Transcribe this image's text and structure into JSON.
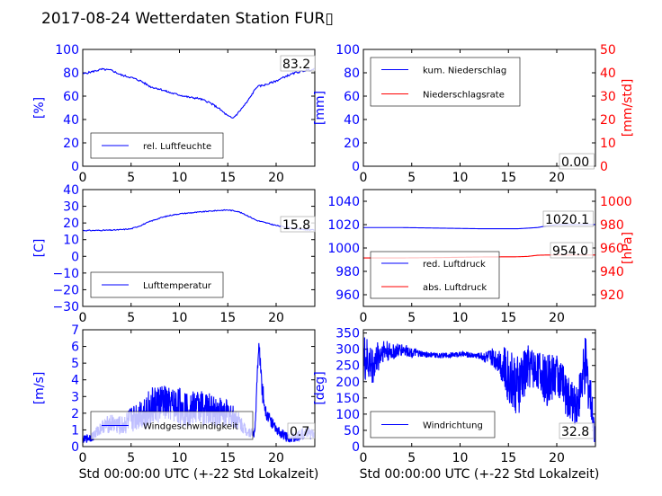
{
  "title": "2017-08-24 Wetterdaten Station FUR▯",
  "colors": {
    "primary": "#0000ff",
    "secondary": "#ff0000",
    "axis": "#000000"
  },
  "xlabel": "Std 00:00:00 UTC (+-22 Std Lokalzeit)",
  "chart_data": [
    {
      "id": "humidity",
      "type": "line",
      "xlabel": "",
      "ylabel": "[%]",
      "xlim": [
        0,
        24
      ],
      "ylim": [
        0,
        100
      ],
      "xticks": [
        0,
        5,
        10,
        15,
        20
      ],
      "yticks": [
        0,
        20,
        40,
        60,
        80,
        100
      ],
      "series": [
        {
          "name": "rel. Luftfeuchte",
          "color": "#0000ff",
          "x": [
            0,
            1,
            2,
            3,
            4,
            5,
            6,
            7,
            8,
            9,
            10,
            11,
            12,
            13,
            14,
            15,
            15.5,
            16,
            17,
            18,
            19,
            20,
            21,
            22,
            23,
            24
          ],
          "y": [
            79,
            81,
            83,
            82,
            78,
            76,
            73,
            68,
            66,
            63,
            61,
            59,
            58,
            55,
            50,
            43,
            41,
            45,
            55,
            68,
            70,
            73,
            77,
            80,
            82,
            83
          ]
        }
      ],
      "annotation": "83.2"
    },
    {
      "id": "precipitation",
      "type": "line",
      "xlabel": "",
      "ylabel": "[mm]",
      "ylabel2": "[mm/std]",
      "xlim": [
        0,
        24
      ],
      "ylim": [
        0,
        100
      ],
      "y2lim": [
        0,
        50
      ],
      "xticks": [
        0,
        5,
        10,
        15,
        20
      ],
      "yticks": [
        0,
        20,
        40,
        60,
        80,
        100
      ],
      "y2ticks": [
        0,
        10,
        20,
        30,
        40,
        50
      ],
      "series": [
        {
          "name": "kum. Niederschlag",
          "color": "#0000ff",
          "x": [
            0,
            24
          ],
          "y": [
            0,
            0
          ]
        },
        {
          "name": "Niederschlagsrate",
          "color": "#ff0000",
          "axis": "right",
          "x": [
            0,
            24
          ],
          "y": [
            0,
            0
          ]
        }
      ],
      "annotation": "0.00"
    },
    {
      "id": "temperature",
      "type": "line",
      "xlabel": "",
      "ylabel": "[C]",
      "xlim": [
        0,
        24
      ],
      "ylim": [
        -30,
        40
      ],
      "xticks": [
        0,
        5,
        10,
        15,
        20
      ],
      "yticks": [
        -30,
        -20,
        -10,
        0,
        10,
        20,
        30,
        40
      ],
      "series": [
        {
          "name": "Lufttemperatur",
          "color": "#0000ff",
          "x": [
            0,
            1,
            2,
            3,
            4,
            5,
            6,
            7,
            8,
            9,
            10,
            11,
            12,
            13,
            14,
            15,
            16,
            17,
            18,
            19,
            20,
            21,
            22,
            23,
            24
          ],
          "y": [
            15.5,
            15.5,
            15.6,
            15.7,
            16,
            16.5,
            18.5,
            21,
            23,
            24.5,
            25.5,
            26,
            26.5,
            27,
            27.5,
            27.8,
            27,
            24.5,
            21.5,
            20,
            18.5,
            17.5,
            16.5,
            16,
            15.8
          ]
        }
      ],
      "annotation": "15.8"
    },
    {
      "id": "pressure",
      "type": "line",
      "xlabel": "",
      "ylabel": "",
      "ylabel2": "[hPa]",
      "xlim": [
        0,
        24
      ],
      "ylim": [
        950,
        1050
      ],
      "y2lim": [
        910,
        1010
      ],
      "xticks": [
        0,
        5,
        10,
        15,
        20
      ],
      "yticks": [
        960,
        980,
        1000,
        1020,
        1040
      ],
      "y2ticks": [
        920,
        940,
        960,
        980,
        1000
      ],
      "series": [
        {
          "name": "red. Luftdruck",
          "color": "#0000ff",
          "x": [
            0,
            4,
            8,
            12,
            16,
            18,
            19,
            20,
            22,
            24
          ],
          "y": [
            1017.5,
            1017.5,
            1017,
            1016.5,
            1016.5,
            1017.5,
            1019,
            1020,
            1020.1,
            1020.1
          ]
        },
        {
          "name": "abs. Luftdruck",
          "color": "#ff0000",
          "axis": "right",
          "x": [
            0,
            4,
            8,
            12,
            16,
            17,
            18,
            19,
            20,
            22,
            24
          ],
          "y": [
            951.5,
            951.5,
            951.8,
            952.3,
            952.5,
            952.8,
            953.8,
            954.0,
            954.0,
            954.0,
            954.0
          ]
        }
      ],
      "annotations": [
        "1020.1",
        "954.0"
      ]
    },
    {
      "id": "wind_speed",
      "type": "line",
      "xlabel": "Std 00:00:00 UTC (+-22 Std Lokalzeit)",
      "ylabel": "[m/s]",
      "xlim": [
        0,
        24
      ],
      "ylim": [
        0,
        7
      ],
      "xticks": [
        0,
        5,
        10,
        15,
        20
      ],
      "yticks": [
        0,
        1,
        2,
        3,
        4,
        5,
        6,
        7
      ],
      "series": [
        {
          "name": "Windgeschwindigkeit",
          "color": "#0000ff",
          "x": [
            0,
            1,
            2,
            3,
            4,
            5,
            6,
            7,
            8,
            9,
            10,
            11,
            12,
            13,
            14,
            15,
            16,
            17,
            17.8,
            18.2,
            18.6,
            19,
            20,
            21,
            22,
            23,
            24
          ],
          "y": [
            0.4,
            0.6,
            1.2,
            1.4,
            1.2,
            1.6,
            2.0,
            2.3,
            2.6,
            2.5,
            2.4,
            2.2,
            2.4,
            2.2,
            2.1,
            2.0,
            1.6,
            0.9,
            0.8,
            6.2,
            3.2,
            2.0,
            1.0,
            0.6,
            0.5,
            0.9,
            0.7
          ],
          "noise": [
            0.2,
            0.3,
            0.4,
            0.6,
            0.6,
            0.8,
            1.0,
            1.2,
            1.2,
            1.0,
            1.2,
            1.0,
            1.1,
            1.0,
            1.0,
            0.8,
            0.6,
            0.3,
            0.3,
            0.4,
            0.7,
            0.4,
            0.3,
            0.3,
            0.3,
            0.4,
            0.3
          ]
        }
      ],
      "annotation": "0.7"
    },
    {
      "id": "wind_direction",
      "type": "line",
      "xlabel": "Std 00:00:00 UTC (+-22 Std Lokalzeit)",
      "ylabel": "[deg]",
      "xlim": [
        0,
        24
      ],
      "ylim": [
        0,
        360
      ],
      "xticks": [
        0,
        5,
        10,
        15,
        20
      ],
      "yticks": [
        0,
        50,
        100,
        150,
        200,
        250,
        300,
        350
      ],
      "series": [
        {
          "name": "Windrichtung",
          "color": "#0000ff",
          "x": [
            0,
            1,
            2,
            3,
            4,
            5,
            6,
            8,
            10,
            12,
            14,
            15,
            16,
            17,
            18,
            19,
            20,
            21,
            22,
            23,
            24
          ],
          "y": [
            270,
            250,
            300,
            290,
            300,
            290,
            285,
            280,
            285,
            280,
            270,
            220,
            180,
            250,
            240,
            200,
            230,
            160,
            120,
            250,
            33
          ],
          "noise": [
            80,
            60,
            40,
            25,
            20,
            15,
            10,
            8,
            8,
            10,
            40,
            90,
            100,
            70,
            60,
            80,
            70,
            70,
            60,
            100,
            40
          ]
        }
      ],
      "annotation": "32.8"
    }
  ]
}
